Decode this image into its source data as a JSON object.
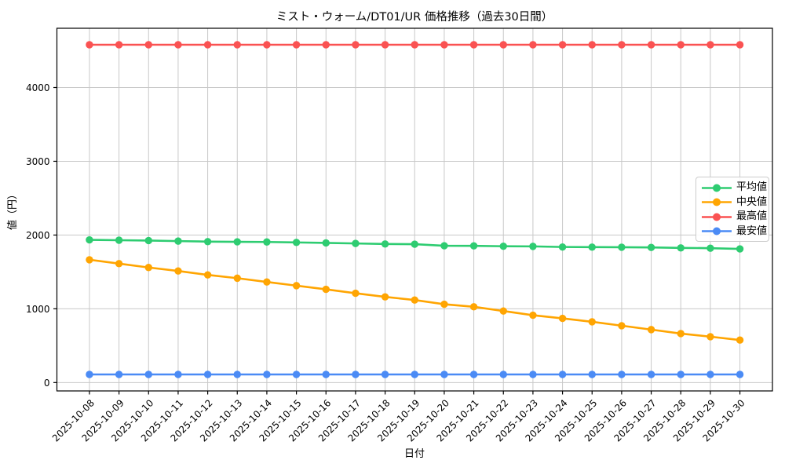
{
  "chart_data": {
    "type": "line",
    "title": "ミスト・ウォーム/DT01/UR 価格推移（過去30日間）",
    "xlabel": "日付",
    "ylabel": "値（円）",
    "x": [
      "2025-10-08",
      "2025-10-09",
      "2025-10-10",
      "2025-10-11",
      "2025-10-12",
      "2025-10-13",
      "2025-10-14",
      "2025-10-15",
      "2025-10-16",
      "2025-10-17",
      "2025-10-18",
      "2025-10-19",
      "2025-10-20",
      "2025-10-21",
      "2025-10-22",
      "2025-10-23",
      "2025-10-24",
      "2025-10-25",
      "2025-10-26",
      "2025-10-27",
      "2025-10-28",
      "2025-10-29",
      "2025-10-30"
    ],
    "series": [
      {
        "name": "平均値",
        "color": "#2ecc71",
        "values": [
          1935,
          1930,
          1925,
          1918,
          1911,
          1908,
          1906,
          1900,
          1893,
          1886,
          1879,
          1876,
          1855,
          1853,
          1848,
          1846,
          1838,
          1836,
          1835,
          1832,
          1826,
          1822,
          1812
        ]
      },
      {
        "name": "中央値",
        "color": "#ffa502",
        "values": [
          1665,
          1613,
          1560,
          1513,
          1460,
          1415,
          1364,
          1314,
          1264,
          1211,
          1162,
          1119,
          1062,
          1027,
          970,
          913,
          870,
          824,
          771,
          718,
          664,
          622,
          576
        ]
      },
      {
        "name": "最高値",
        "color": "#fa5252",
        "values": [
          4580,
          4580,
          4580,
          4580,
          4580,
          4580,
          4580,
          4580,
          4580,
          4580,
          4580,
          4580,
          4580,
          4580,
          4580,
          4580,
          4580,
          4580,
          4580,
          4580,
          4580,
          4580,
          4580
        ]
      },
      {
        "name": "最安値",
        "color": "#4b8bf5",
        "values": [
          110,
          110,
          110,
          110,
          110,
          110,
          110,
          110,
          110,
          110,
          110,
          110,
          110,
          110,
          110,
          110,
          110,
          110,
          110,
          110,
          110,
          110,
          110
        ]
      }
    ],
    "yticks": [
      0,
      1000,
      2000,
      3000,
      4000
    ],
    "ylim": [
      -113.5,
      4803.5
    ],
    "x_margin": 1.1,
    "grid": true,
    "grid_color": "#c8c8c8",
    "background": "#ffffff",
    "legend_position": "center-right"
  }
}
